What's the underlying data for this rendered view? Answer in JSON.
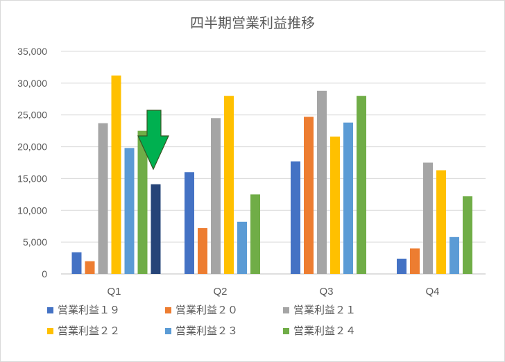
{
  "chart_data": {
    "type": "bar",
    "title": "四半期営業利益推移",
    "xlabel": "",
    "ylabel": "",
    "categories": [
      "Q1",
      "Q2",
      "Q3",
      "Q4"
    ],
    "ylim": [
      0,
      35000
    ],
    "yticks": [
      0,
      5000,
      10000,
      15000,
      20000,
      25000,
      30000,
      35000
    ],
    "ytick_labels": [
      "0",
      "5,000",
      "10,000",
      "15,000",
      "20,000",
      "25,000",
      "30,000",
      "35,000"
    ],
    "grid": true,
    "legend_position": "bottom",
    "series": [
      {
        "name": "営業利益１９",
        "color": "#4472c4",
        "values": [
          3400,
          16000,
          17700,
          2400
        ]
      },
      {
        "name": "営業利益２０",
        "color": "#ed7d31",
        "values": [
          2000,
          7200,
          24700,
          4000
        ]
      },
      {
        "name": "営業利益２１",
        "color": "#a5a5a5",
        "values": [
          23700,
          24500,
          28800,
          17500
        ]
      },
      {
        "name": "営業利益２２",
        "color": "#ffc000",
        "values": [
          31200,
          28000,
          21600,
          16300
        ]
      },
      {
        "name": "営業利益２３",
        "color": "#5b9bd5",
        "values": [
          19800,
          8200,
          23800,
          5800
        ]
      },
      {
        "name": "営業利益２４",
        "color": "#70ad47",
        "values": [
          22500,
          12500,
          28000,
          12200
        ]
      }
    ],
    "extra_bars": [
      {
        "category": "Q1",
        "value": 14100,
        "color": "#264478"
      }
    ],
    "annotation": {
      "type": "arrow",
      "direction": "down",
      "color": "#00b050",
      "outline": "#375623",
      "category": "Q1"
    }
  }
}
